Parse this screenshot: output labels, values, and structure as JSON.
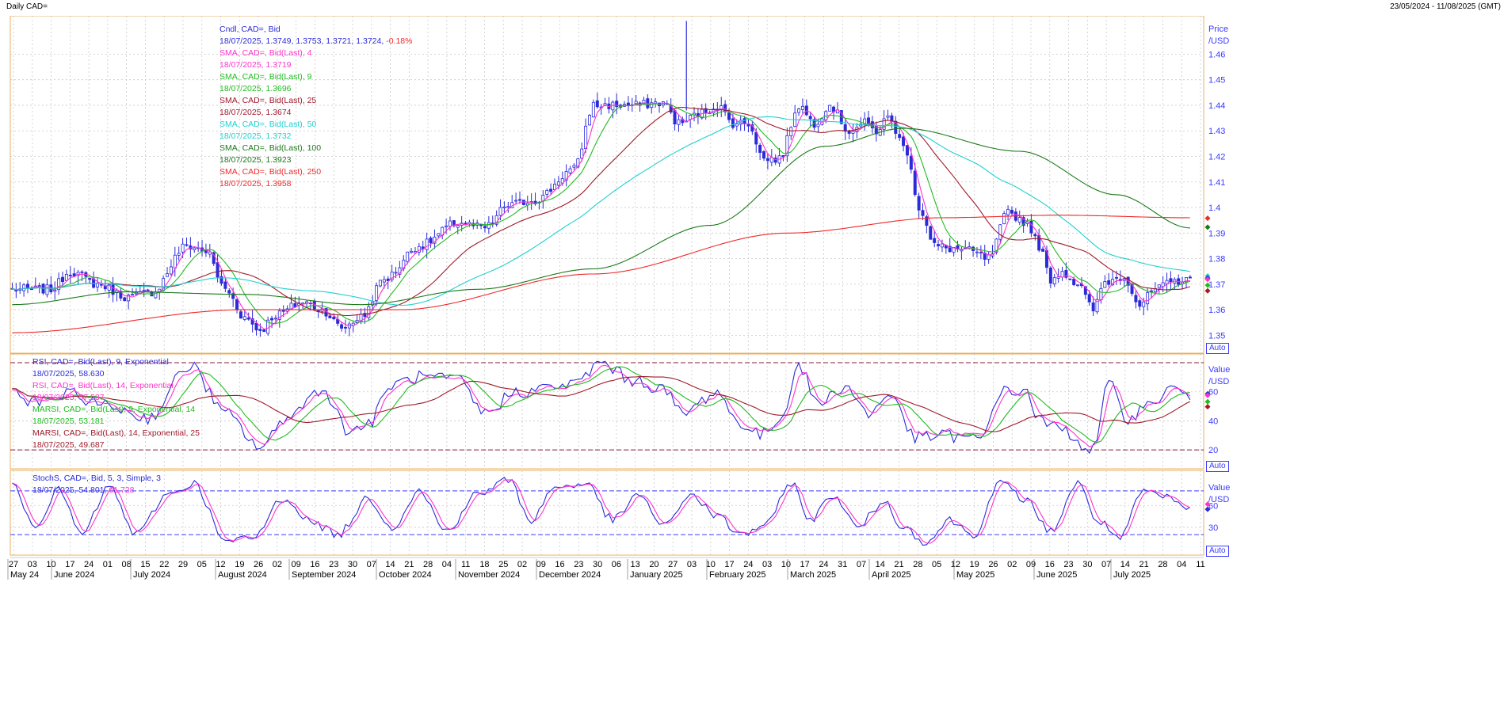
{
  "window": {
    "title": "Daily CAD=",
    "date_range": "23/05/2024 - 11/08/2025 (GMT)"
  },
  "colors": {
    "candle": "#2b2bd9",
    "sma4": "#ff33cc",
    "sma9": "#22bb22",
    "sma25": "#a01a2a",
    "sma50": "#20d0d0",
    "sma100": "#1a7a1a",
    "sma250": "#ee2a2a",
    "axis": "#3b3bff",
    "grid": "#c9c9c9",
    "border": "#e8b060"
  },
  "price_panel": {
    "axis_title_1": "Price",
    "axis_title_2": "/USD",
    "auto_label": "Auto",
    "legend": [
      {
        "l1": "Cndl, CAD=, Bid",
        "l2": "18/07/2025, 1.3749, 1.3753, 1.3721, 1.3724,",
        "l2b": "-0.18%",
        "color": "#2b2bd9"
      },
      {
        "l1": "SMA, CAD=, Bid(Last),  4",
        "l2": "18/07/2025, 1.3719",
        "color": "#ff33cc"
      },
      {
        "l1": "SMA, CAD=, Bid(Last),  9",
        "l2": "18/07/2025, 1.3696",
        "color": "#22bb22"
      },
      {
        "l1": "SMA, CAD=, Bid(Last),  25",
        "l2": "18/07/2025, 1.3674",
        "color": "#a01a2a"
      },
      {
        "l1": "SMA, CAD=, Bid(Last),  50",
        "l2": "18/07/2025, 1.3732",
        "color": "#20d0d0"
      },
      {
        "l1": "SMA, CAD=, Bid(Last),  100",
        "l2": "18/07/2025, 1.3923",
        "color": "#1a7a1a"
      },
      {
        "l1": "SMA, CAD=, Bid(Last),  250",
        "l2": "18/07/2025, 1.3958",
        "color": "#ee2a2a"
      }
    ]
  },
  "rsi_panel": {
    "axis_title_1": "Value",
    "axis_title_2": "/USD",
    "auto_label": "Auto",
    "legend": [
      {
        "l1": "RSI, CAD=, Bid(Last),  9, Exponential",
        "l2": "18/07/2025, 58.630",
        "color": "#2b2bd9"
      },
      {
        "l1": "RSI, CAD=, Bid(Last),  14, Exponential",
        "l2": "18/07/2025, 57.537",
        "color": "#ff33cc"
      },
      {
        "l1": "MARSI, CAD=, Bid(Last),  9, Exponential, 14",
        "l2": "18/07/2025, 53.181",
        "color": "#22bb22"
      },
      {
        "l1": "MARSI, CAD=, Bid(Last),  14, Exponential, 25",
        "l2": "18/07/2025, 49.687",
        "color": "#a01a2a"
      }
    ]
  },
  "stoch_panel": {
    "axis_title_1": "Value",
    "axis_title_2": "/USD",
    "auto_label": "Auto",
    "legend": [
      {
        "l1": "StochS, CAD=, Bid,  5, 3, Simple, 3",
        "l2": "18/07/2025, 54.801,",
        "l2b": "61.728",
        "color": "#2b2bd9",
        "color_b": "#ff33cc"
      }
    ]
  },
  "chart_data": {
    "type": "candlestick",
    "price_axis": {
      "ticks": [
        1.35,
        1.36,
        1.37,
        1.38,
        1.39,
        1.4,
        1.41,
        1.42,
        1.43,
        1.44,
        1.45,
        1.46
      ],
      "tick_labels": [
        "1.35",
        "1.36",
        "1.37",
        "1.38",
        "1.39",
        "1.4",
        "1.41",
        "1.42",
        "1.43",
        "1.44",
        "1.45",
        "1.46"
      ],
      "range": [
        1.343,
        1.475
      ]
    },
    "rsi_axis": {
      "ticks": [
        20,
        40,
        60
      ],
      "tick_labels": [
        "20",
        "40",
        "60"
      ],
      "range": [
        7,
        86
      ],
      "bands": [
        20,
        80
      ]
    },
    "stoch_axis": {
      "ticks": [
        30,
        60
      ],
      "tick_labels": [
        "30",
        "60"
      ],
      "range": [
        -8,
        108
      ],
      "bands": [
        20,
        80
      ]
    },
    "x_day_labels": [
      "27",
      "03",
      "10",
      "17",
      "24",
      "01",
      "08",
      "15",
      "22",
      "29",
      "05",
      "12",
      "19",
      "26",
      "02",
      "09",
      "16",
      "23",
      "30",
      "07",
      "14",
      "21",
      "28",
      "04",
      "11",
      "18",
      "25",
      "02",
      "09",
      "16",
      "23",
      "30",
      "06",
      "13",
      "20",
      "27",
      "03",
      "10",
      "17",
      "24",
      "03",
      "10",
      "17",
      "24",
      "31",
      "07",
      "14",
      "21",
      "28",
      "05",
      "12",
      "19",
      "26",
      "02",
      "09",
      "16",
      "23",
      "30",
      "07",
      "14",
      "21",
      "28",
      "04",
      "11"
    ],
    "x_month_labels": [
      "May 24",
      "June 2024",
      "July 2024",
      "August 2024",
      "September 2024",
      "October 2024",
      "November 2024",
      "December 2024",
      "January 2025",
      "February 2025",
      "March 2025",
      "April 2025",
      "May 2025",
      "June 2025",
      "July 2025"
    ],
    "close_anchors": [
      [
        0,
        1.368
      ],
      [
        10,
        1.368
      ],
      [
        15,
        1.375
      ],
      [
        22,
        1.37
      ],
      [
        30,
        1.365
      ],
      [
        36,
        1.367
      ],
      [
        45,
        1.385
      ],
      [
        50,
        1.383
      ],
      [
        55,
        1.368
      ],
      [
        60,
        1.357
      ],
      [
        64,
        1.352
      ],
      [
        68,
        1.358
      ],
      [
        75,
        1.363
      ],
      [
        80,
        1.36
      ],
      [
        85,
        1.353
      ],
      [
        90,
        1.357
      ],
      [
        96,
        1.372
      ],
      [
        105,
        1.385
      ],
      [
        115,
        1.394
      ],
      [
        122,
        1.392
      ],
      [
        128,
        1.401
      ],
      [
        135,
        1.403
      ],
      [
        145,
        1.415
      ],
      [
        150,
        1.44
      ],
      [
        160,
        1.44
      ],
      [
        168,
        1.441
      ],
      [
        172,
        1.433
      ],
      [
        178,
        1.437
      ],
      [
        182,
        1.44
      ],
      [
        186,
        1.433
      ],
      [
        190,
        1.433
      ],
      [
        194,
        1.419
      ],
      [
        198,
        1.419
      ],
      [
        203,
        1.44
      ],
      [
        207,
        1.433
      ],
      [
        211,
        1.44
      ],
      [
        216,
        1.43
      ],
      [
        220,
        1.433
      ],
      [
        223,
        1.43
      ],
      [
        226,
        1.435
      ],
      [
        231,
        1.422
      ],
      [
        234,
        1.4
      ],
      [
        238,
        1.385
      ],
      [
        242,
        1.384
      ],
      [
        247,
        1.383
      ],
      [
        252,
        1.38
      ],
      [
        257,
        1.398
      ],
      [
        262,
        1.394
      ],
      [
        265,
        1.385
      ],
      [
        268,
        1.372
      ],
      [
        271,
        1.375
      ],
      [
        275,
        1.37
      ],
      [
        279,
        1.36
      ],
      [
        282,
        1.371
      ],
      [
        287,
        1.373
      ],
      [
        291,
        1.362
      ],
      [
        295,
        1.368
      ],
      [
        300,
        1.371
      ],
      [
        304,
        1.373
      ]
    ],
    "sma100_anchors": [
      [
        0,
        1.362
      ],
      [
        30,
        1.367
      ],
      [
        60,
        1.366
      ],
      [
        90,
        1.362
      ],
      [
        120,
        1.368
      ],
      [
        150,
        1.376
      ],
      [
        180,
        1.393
      ],
      [
        210,
        1.424
      ],
      [
        230,
        1.431
      ],
      [
        260,
        1.422
      ],
      [
        285,
        1.405
      ],
      [
        304,
        1.392
      ]
    ],
    "sma250_anchors": [
      [
        0,
        1.351
      ],
      [
        60,
        1.36
      ],
      [
        100,
        1.36
      ],
      [
        150,
        1.374
      ],
      [
        200,
        1.39
      ],
      [
        240,
        1.396
      ],
      [
        270,
        1.397
      ],
      [
        304,
        1.396
      ]
    ],
    "rsi9_anchors": [
      [
        0,
        60
      ],
      [
        5,
        52
      ],
      [
        15,
        58
      ],
      [
        25,
        50
      ],
      [
        35,
        42
      ],
      [
        46,
        78
      ],
      [
        55,
        45
      ],
      [
        64,
        22
      ],
      [
        72,
        45
      ],
      [
        80,
        62
      ],
      [
        87,
        33
      ],
      [
        92,
        38
      ],
      [
        98,
        65
      ],
      [
        105,
        70
      ],
      [
        115,
        68
      ],
      [
        122,
        45
      ],
      [
        130,
        60
      ],
      [
        145,
        65
      ],
      [
        152,
        80
      ],
      [
        160,
        68
      ],
      [
        168,
        62
      ],
      [
        173,
        45
      ],
      [
        182,
        60
      ],
      [
        187,
        40
      ],
      [
        193,
        30
      ],
      [
        198,
        40
      ],
      [
        203,
        78
      ],
      [
        208,
        52
      ],
      [
        215,
        64
      ],
      [
        221,
        45
      ],
      [
        227,
        58
      ],
      [
        233,
        28
      ],
      [
        240,
        30
      ],
      [
        250,
        27
      ],
      [
        255,
        60
      ],
      [
        262,
        60
      ],
      [
        265,
        40
      ],
      [
        270,
        35
      ],
      [
        279,
        20
      ],
      [
        283,
        65
      ],
      [
        288,
        42
      ],
      [
        293,
        50
      ],
      [
        299,
        62
      ],
      [
        304,
        58
      ]
    ],
    "stoch_anchors": [
      [
        0,
        85
      ],
      [
        6,
        35
      ],
      [
        12,
        80
      ],
      [
        18,
        20
      ],
      [
        25,
        85
      ],
      [
        32,
        20
      ],
      [
        40,
        75
      ],
      [
        47,
        90
      ],
      [
        55,
        10
      ],
      [
        62,
        15
      ],
      [
        70,
        70
      ],
      [
        78,
        35
      ],
      [
        84,
        20
      ],
      [
        92,
        70
      ],
      [
        98,
        30
      ],
      [
        105,
        80
      ],
      [
        112,
        25
      ],
      [
        120,
        75
      ],
      [
        128,
        95
      ],
      [
        134,
        40
      ],
      [
        140,
        85
      ],
      [
        148,
        90
      ],
      [
        155,
        40
      ],
      [
        162,
        75
      ],
      [
        168,
        30
      ],
      [
        175,
        75
      ],
      [
        182,
        45
      ],
      [
        188,
        20
      ],
      [
        195,
        35
      ],
      [
        201,
        92
      ],
      [
        206,
        40
      ],
      [
        212,
        75
      ],
      [
        218,
        30
      ],
      [
        225,
        65
      ],
      [
        230,
        30
      ],
      [
        236,
        10
      ],
      [
        242,
        40
      ],
      [
        248,
        20
      ],
      [
        255,
        90
      ],
      [
        261,
        70
      ],
      [
        268,
        25
      ],
      [
        275,
        90
      ],
      [
        280,
        40
      ],
      [
        286,
        15
      ],
      [
        292,
        80
      ],
      [
        298,
        70
      ],
      [
        304,
        55
      ]
    ],
    "last_markers": {
      "price": [
        [
          1.3958,
          "#ee2a2a"
        ],
        [
          1.3923,
          "#1a7a1a"
        ],
        [
          1.3732,
          "#20d0d0"
        ],
        [
          1.3724,
          "#2b2bd9"
        ],
        [
          1.3719,
          "#ff33cc"
        ],
        [
          1.3696,
          "#22bb22"
        ],
        [
          1.3674,
          "#a01a2a"
        ]
      ],
      "rsi": [
        [
          58.63,
          "#2b2bd9"
        ],
        [
          57.537,
          "#ff33cc"
        ],
        [
          53.181,
          "#22bb22"
        ],
        [
          49.687,
          "#a01a2a"
        ]
      ],
      "stoch": [
        [
          61.728,
          "#ff33cc"
        ],
        [
          54.801,
          "#2b2bd9"
        ]
      ]
    }
  }
}
